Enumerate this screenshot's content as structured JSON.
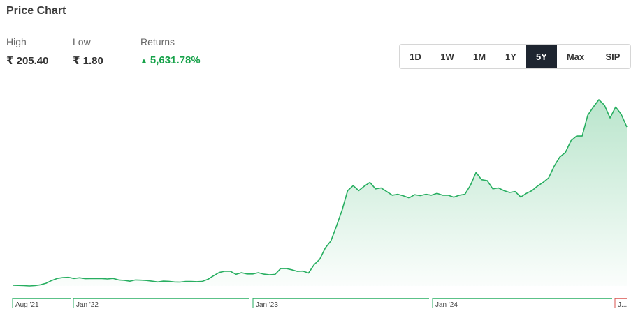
{
  "header": {
    "title": "Price Chart"
  },
  "stats": {
    "high_label": "High",
    "high_value": "₹ 205.40",
    "low_label": "Low",
    "low_value": "₹ 1.80",
    "returns_label": "Returns",
    "returns_value": "5,631.78%",
    "returns_icon": "up-triangle-icon"
  },
  "range_selector": {
    "options": [
      "1D",
      "1W",
      "1M",
      "1Y",
      "5Y",
      "Max",
      "SIP"
    ],
    "selected": "5Y"
  },
  "colors": {
    "line": "#27ae60",
    "fill": "#27ae60",
    "returns": "#17a24a",
    "selected_bg": "#1e2530",
    "last_segment": "#d9534f"
  },
  "chart_data": {
    "type": "area",
    "title": "",
    "xlabel": "",
    "ylabel": "",
    "ylim": [
      0,
      210
    ],
    "grid": false,
    "x_tick_labels": [
      "Aug '21",
      "Jan '22",
      "Jan '23",
      "Jan '24",
      "J..."
    ],
    "series": [
      {
        "values": [
          6,
          5.8,
          5.6,
          5.2,
          5.6,
          6.5,
          8.2,
          11.2,
          13.5,
          14.3,
          14.6,
          13.4,
          14.2,
          13.2,
          13.3,
          13.3,
          13.3,
          12.9,
          13.5,
          11.8,
          11.3,
          10.4,
          11.8,
          11.6,
          11.2,
          10.4,
          9.6,
          10.5,
          10.3,
          9.6,
          9.4,
          10.2,
          10.1,
          9.9,
          10.3,
          12.6,
          16.5,
          20,
          21.4,
          21.4,
          18,
          19.8,
          18.4,
          18.4,
          19.8,
          18.2,
          17.5,
          17.9,
          24.3,
          24.4,
          23,
          21.2,
          21.5,
          19.4,
          28.7,
          34.5,
          47,
          54.7,
          71,
          88.5,
          110,
          115.5,
          110,
          115,
          119,
          112,
          113,
          109,
          105,
          106,
          104.2,
          102,
          105.5,
          104.5,
          106,
          105,
          107,
          105,
          105,
          102.8,
          105,
          106,
          116,
          130,
          122,
          121,
          112,
          113,
          110,
          108,
          109,
          103,
          107,
          110,
          115,
          119,
          124,
          137,
          147,
          152,
          165,
          170,
          170,
          193,
          202,
          210,
          204,
          190,
          202,
          194,
          180
        ]
      }
    ]
  }
}
